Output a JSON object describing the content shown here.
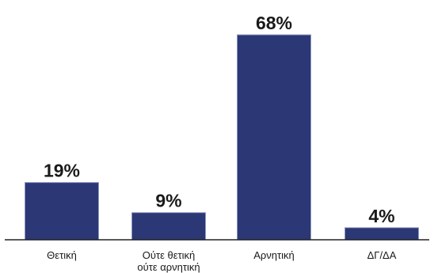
{
  "chart_data": {
    "type": "bar",
    "categories": [
      [
        "Θετική"
      ],
      [
        "Ούτε θετική",
        "ούτε αρνητική"
      ],
      [
        "Αρνητική"
      ],
      [
        "ΔΓ/ΔΑ"
      ]
    ],
    "values": [
      19,
      9,
      68,
      4
    ],
    "value_labels": [
      "19%",
      "9%",
      "68%",
      "4%"
    ],
    "unit": "%",
    "ylim": [
      0,
      70
    ],
    "grid": false,
    "legend": "none",
    "colors": {
      "bar": "#2b3875",
      "bar_edge": "#8f97c2",
      "axis": "#222222",
      "text": "#1a1a1a"
    }
  }
}
